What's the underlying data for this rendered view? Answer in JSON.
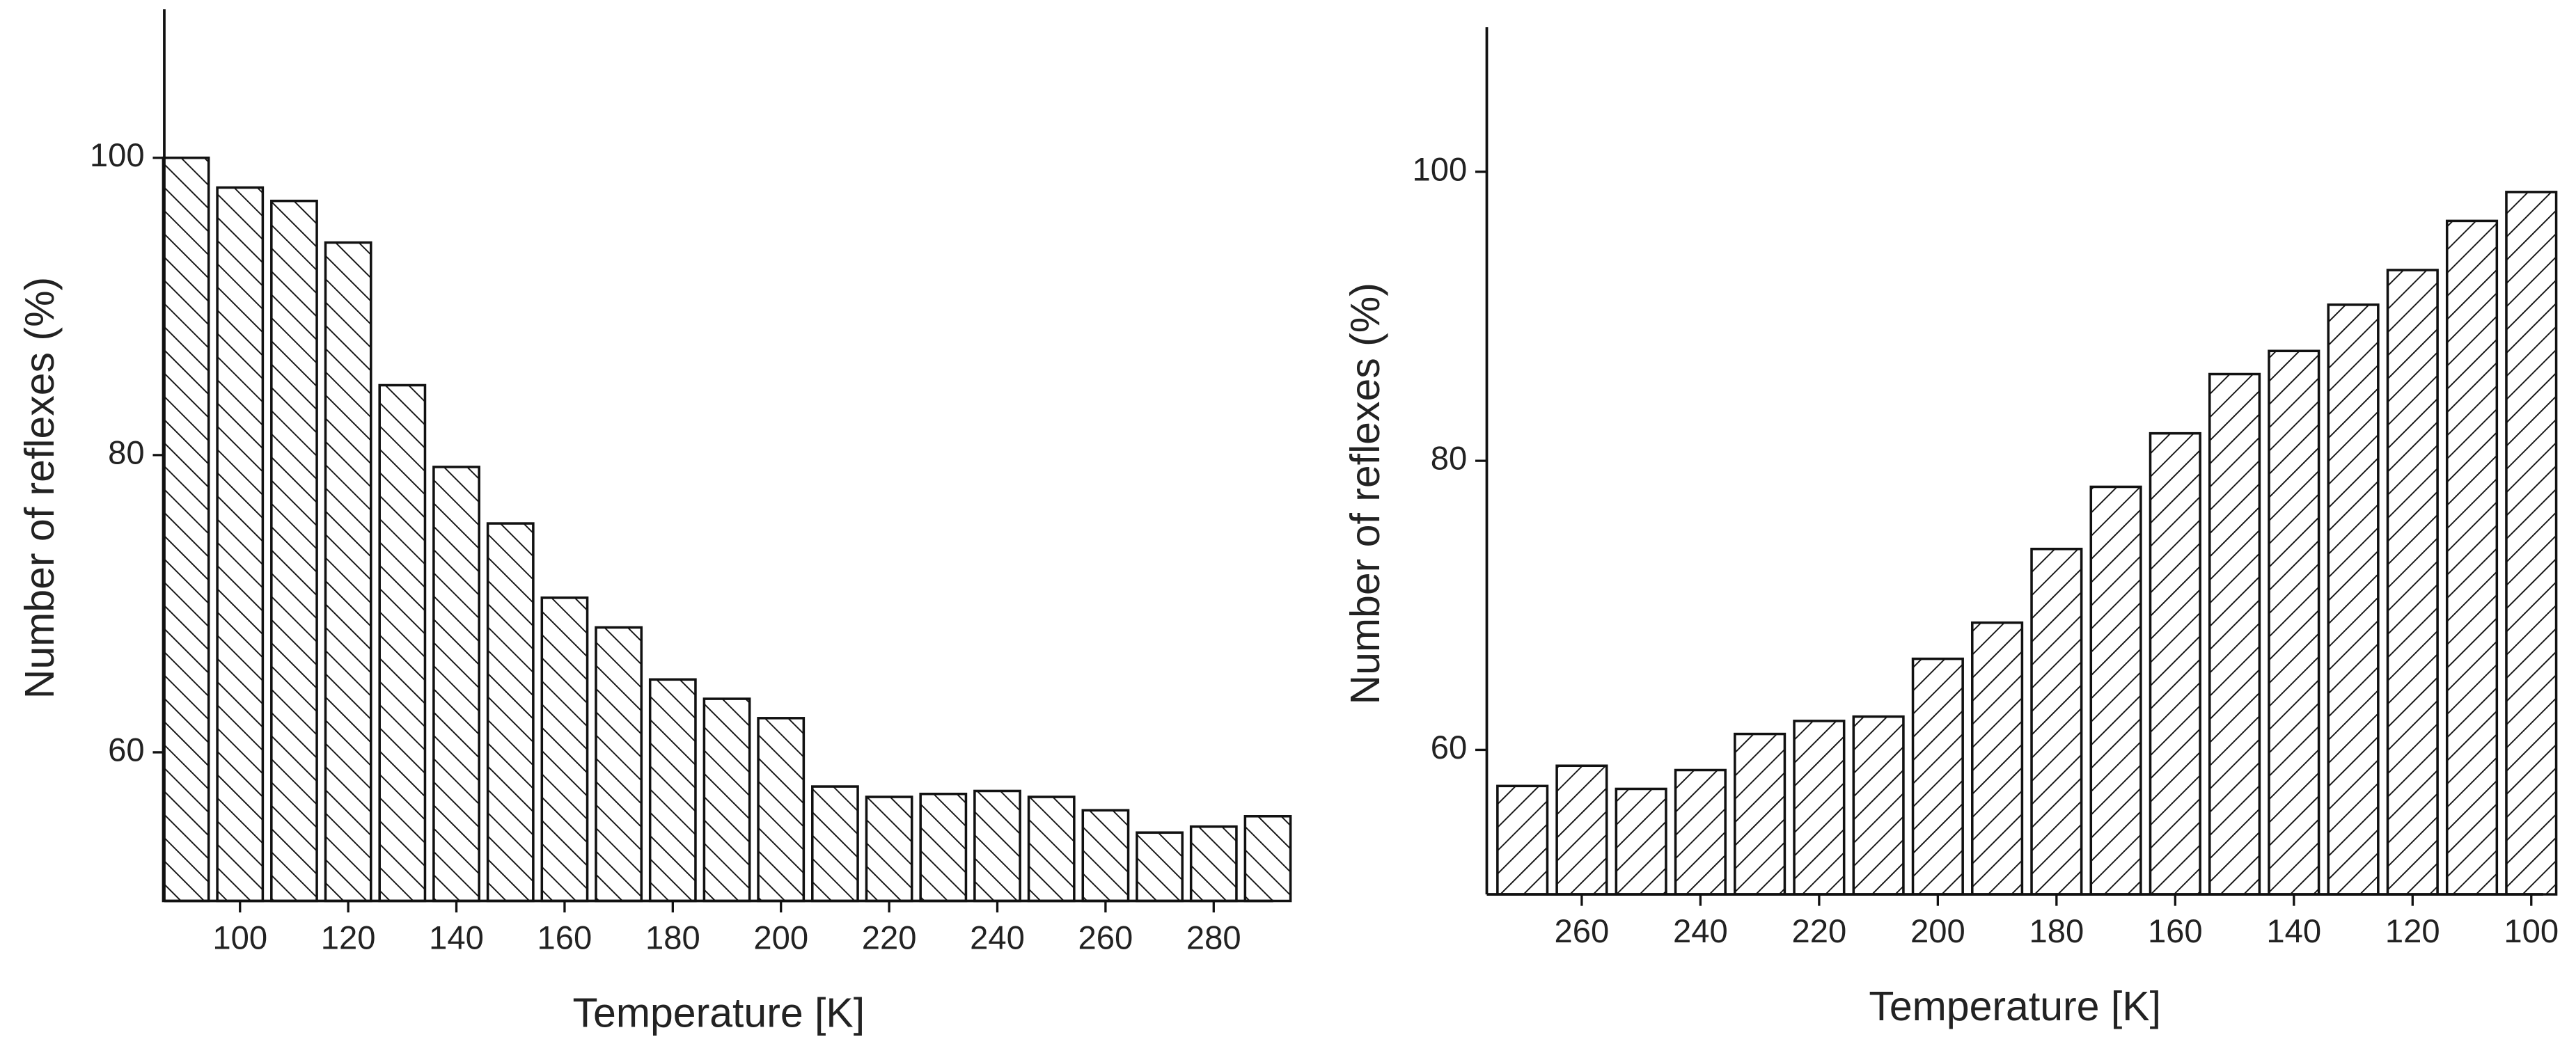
{
  "chart_data": [
    {
      "type": "bar",
      "hatch": "backslash",
      "color": "#111111",
      "x": [
        90,
        100,
        110,
        120,
        130,
        140,
        150,
        160,
        170,
        180,
        190,
        200,
        210,
        220,
        230,
        240,
        250,
        260,
        270,
        280,
        290
      ],
      "values": [
        100,
        98,
        97.1,
        94.3,
        84.7,
        79.2,
        75.4,
        70.4,
        68.4,
        64.9,
        63.6,
        62.3,
        57.7,
        57,
        57.2,
        57.4,
        57,
        56.1,
        54.6,
        55,
        55.7
      ],
      "xlim": [
        86,
        291
      ],
      "xticks": [
        100,
        120,
        140,
        160,
        180,
        200,
        220,
        240,
        260,
        280
      ],
      "ylim": [
        50,
        110
      ],
      "yticks": [
        60,
        80,
        100
      ],
      "x_label": "Temperature [K]",
      "y_label": "Number of reflexes (%)"
    },
    {
      "type": "bar",
      "hatch": "slash",
      "color": "#111111",
      "x": [
        270,
        260,
        250,
        240,
        230,
        220,
        210,
        200,
        190,
        180,
        170,
        160,
        150,
        140,
        130,
        120,
        110,
        100
      ],
      "values": [
        57.5,
        58.9,
        57.3,
        58.6,
        61.1,
        62,
        62.3,
        66.3,
        68.8,
        73.9,
        78.2,
        81.9,
        86,
        87.6,
        90.8,
        93.2,
        96.6,
        98.6
      ],
      "xlim": [
        276,
        98
      ],
      "xticks": [
        260,
        240,
        220,
        200,
        180,
        160,
        140,
        120,
        100
      ],
      "ylim": [
        50,
        110
      ],
      "yticks": [
        60,
        80,
        100
      ],
      "x_label": "Temperature [K]",
      "y_label": "Number of reflexes (%)"
    }
  ]
}
